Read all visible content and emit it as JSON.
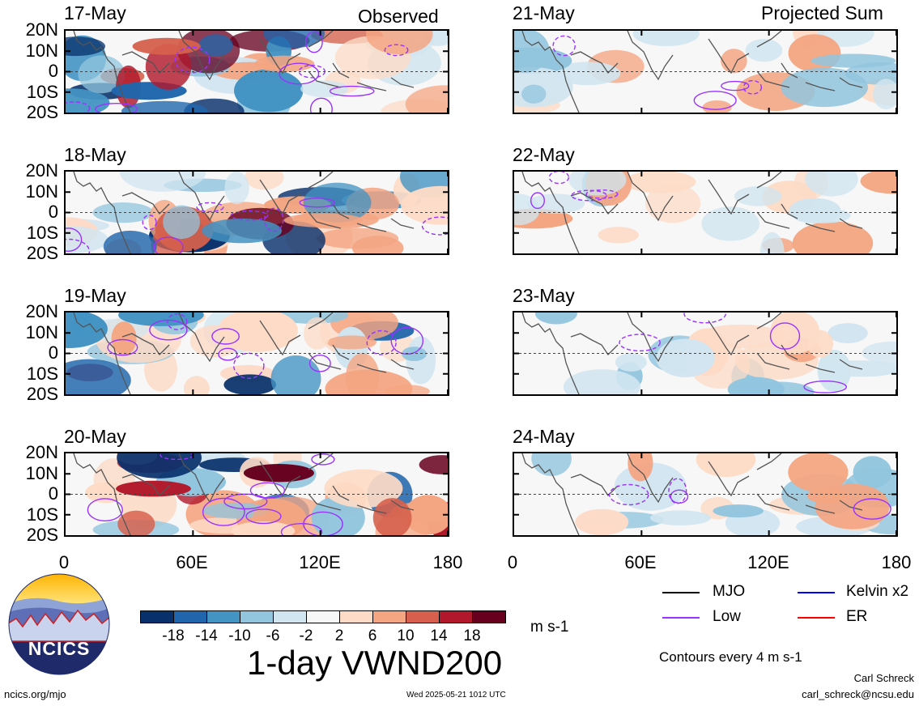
{
  "observed_label": "Observed",
  "projected_label": "Projected Sum",
  "panels_left": [
    {
      "date": "17-May"
    },
    {
      "date": "18-May"
    },
    {
      "date": "19-May"
    },
    {
      "date": "20-May"
    }
  ],
  "panels_right": [
    {
      "date": "21-May"
    },
    {
      "date": "22-May"
    },
    {
      "date": "23-May"
    },
    {
      "date": "24-May"
    }
  ],
  "lat_labels": [
    "20N",
    "10N",
    "0",
    "10S",
    "20S"
  ],
  "lon_labels": [
    "0",
    "60E",
    "120E",
    "180"
  ],
  "colorbar": {
    "colors": [
      "#08306b",
      "#2166ac",
      "#4393c3",
      "#92c5de",
      "#d1e5f0",
      "#f7f7f7",
      "#fddbc7",
      "#f4a582",
      "#d6604d",
      "#b2182b",
      "#67001f"
    ],
    "tick_labels": [
      "-18",
      "-14",
      "-10",
      "-6",
      "-2",
      "2",
      "6",
      "10",
      "14",
      "18"
    ],
    "units": "m s-1"
  },
  "main_title": "1-day VWND200",
  "legend": [
    {
      "label": "MJO",
      "color": "#000000"
    },
    {
      "label": "Kelvin x2",
      "color": "#0000ff"
    },
    {
      "label": "Low",
      "color": "#9933ff"
    },
    {
      "label": "ER",
      "color": "#ff0000"
    }
  ],
  "contour_note": "Contours every 4 m s-1",
  "logo_text": "NCICS",
  "footer_left": "ncics.org/mjo",
  "footer_center": "Wed 2025-05-21 1012 UTC",
  "author_name": "Carl Schreck",
  "author_email": "carl_schreck@ncsu.edu"
}
